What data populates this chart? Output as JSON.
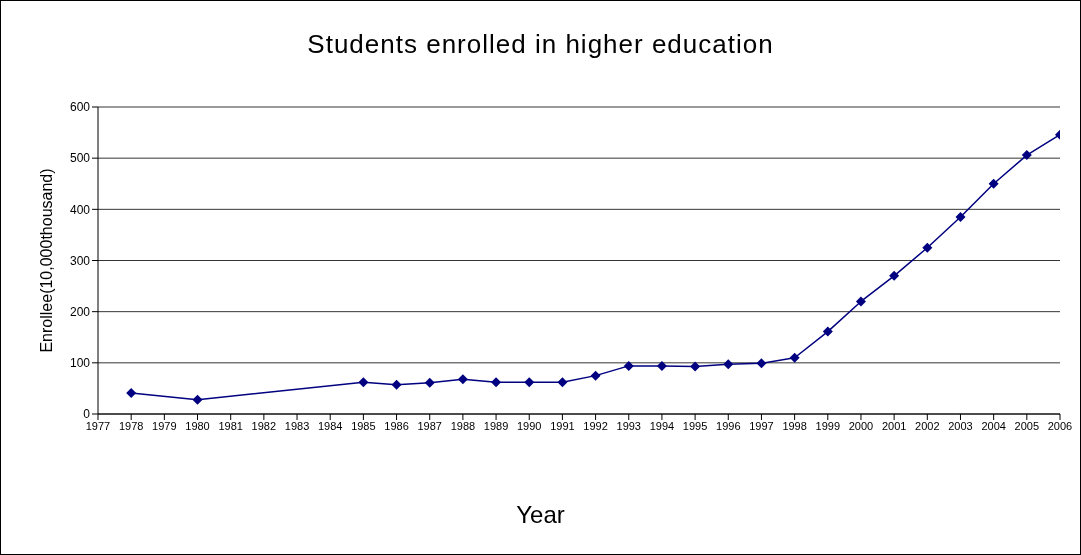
{
  "chart_data": {
    "type": "line",
    "title": "Students enrolled in higher education",
    "xlabel": "Year",
    "ylabel": "Enrollee(10,000thousand)",
    "x": [
      1978,
      1980,
      1985,
      1986,
      1987,
      1988,
      1989,
      1990,
      1991,
      1992,
      1993,
      1994,
      1995,
      1996,
      1997,
      1998,
      1999,
      2000,
      2001,
      2002,
      2003,
      2004,
      2005,
      2006
    ],
    "values": [
      41,
      28,
      62,
      57,
      61,
      68,
      62,
      62,
      62,
      75,
      94,
      94,
      93,
      97,
      99,
      110,
      161,
      220,
      270,
      325,
      385,
      450,
      506,
      546
    ],
    "color": "#000080",
    "marker": "diamond",
    "line_style": "solid",
    "xlim": [
      1977,
      2006
    ],
    "xticks": [
      1977,
      1978,
      1979,
      1980,
      1981,
      1982,
      1983,
      1984,
      1985,
      1986,
      1987,
      1988,
      1989,
      1990,
      1991,
      1992,
      1993,
      1994,
      1995,
      1996,
      1997,
      1998,
      1999,
      2000,
      2001,
      2002,
      2003,
      2004,
      2005,
      2006
    ],
    "ylim": [
      0,
      600
    ],
    "yticks": [
      0,
      100,
      200,
      300,
      400,
      500,
      600
    ],
    "grid": "y",
    "legend": false
  }
}
